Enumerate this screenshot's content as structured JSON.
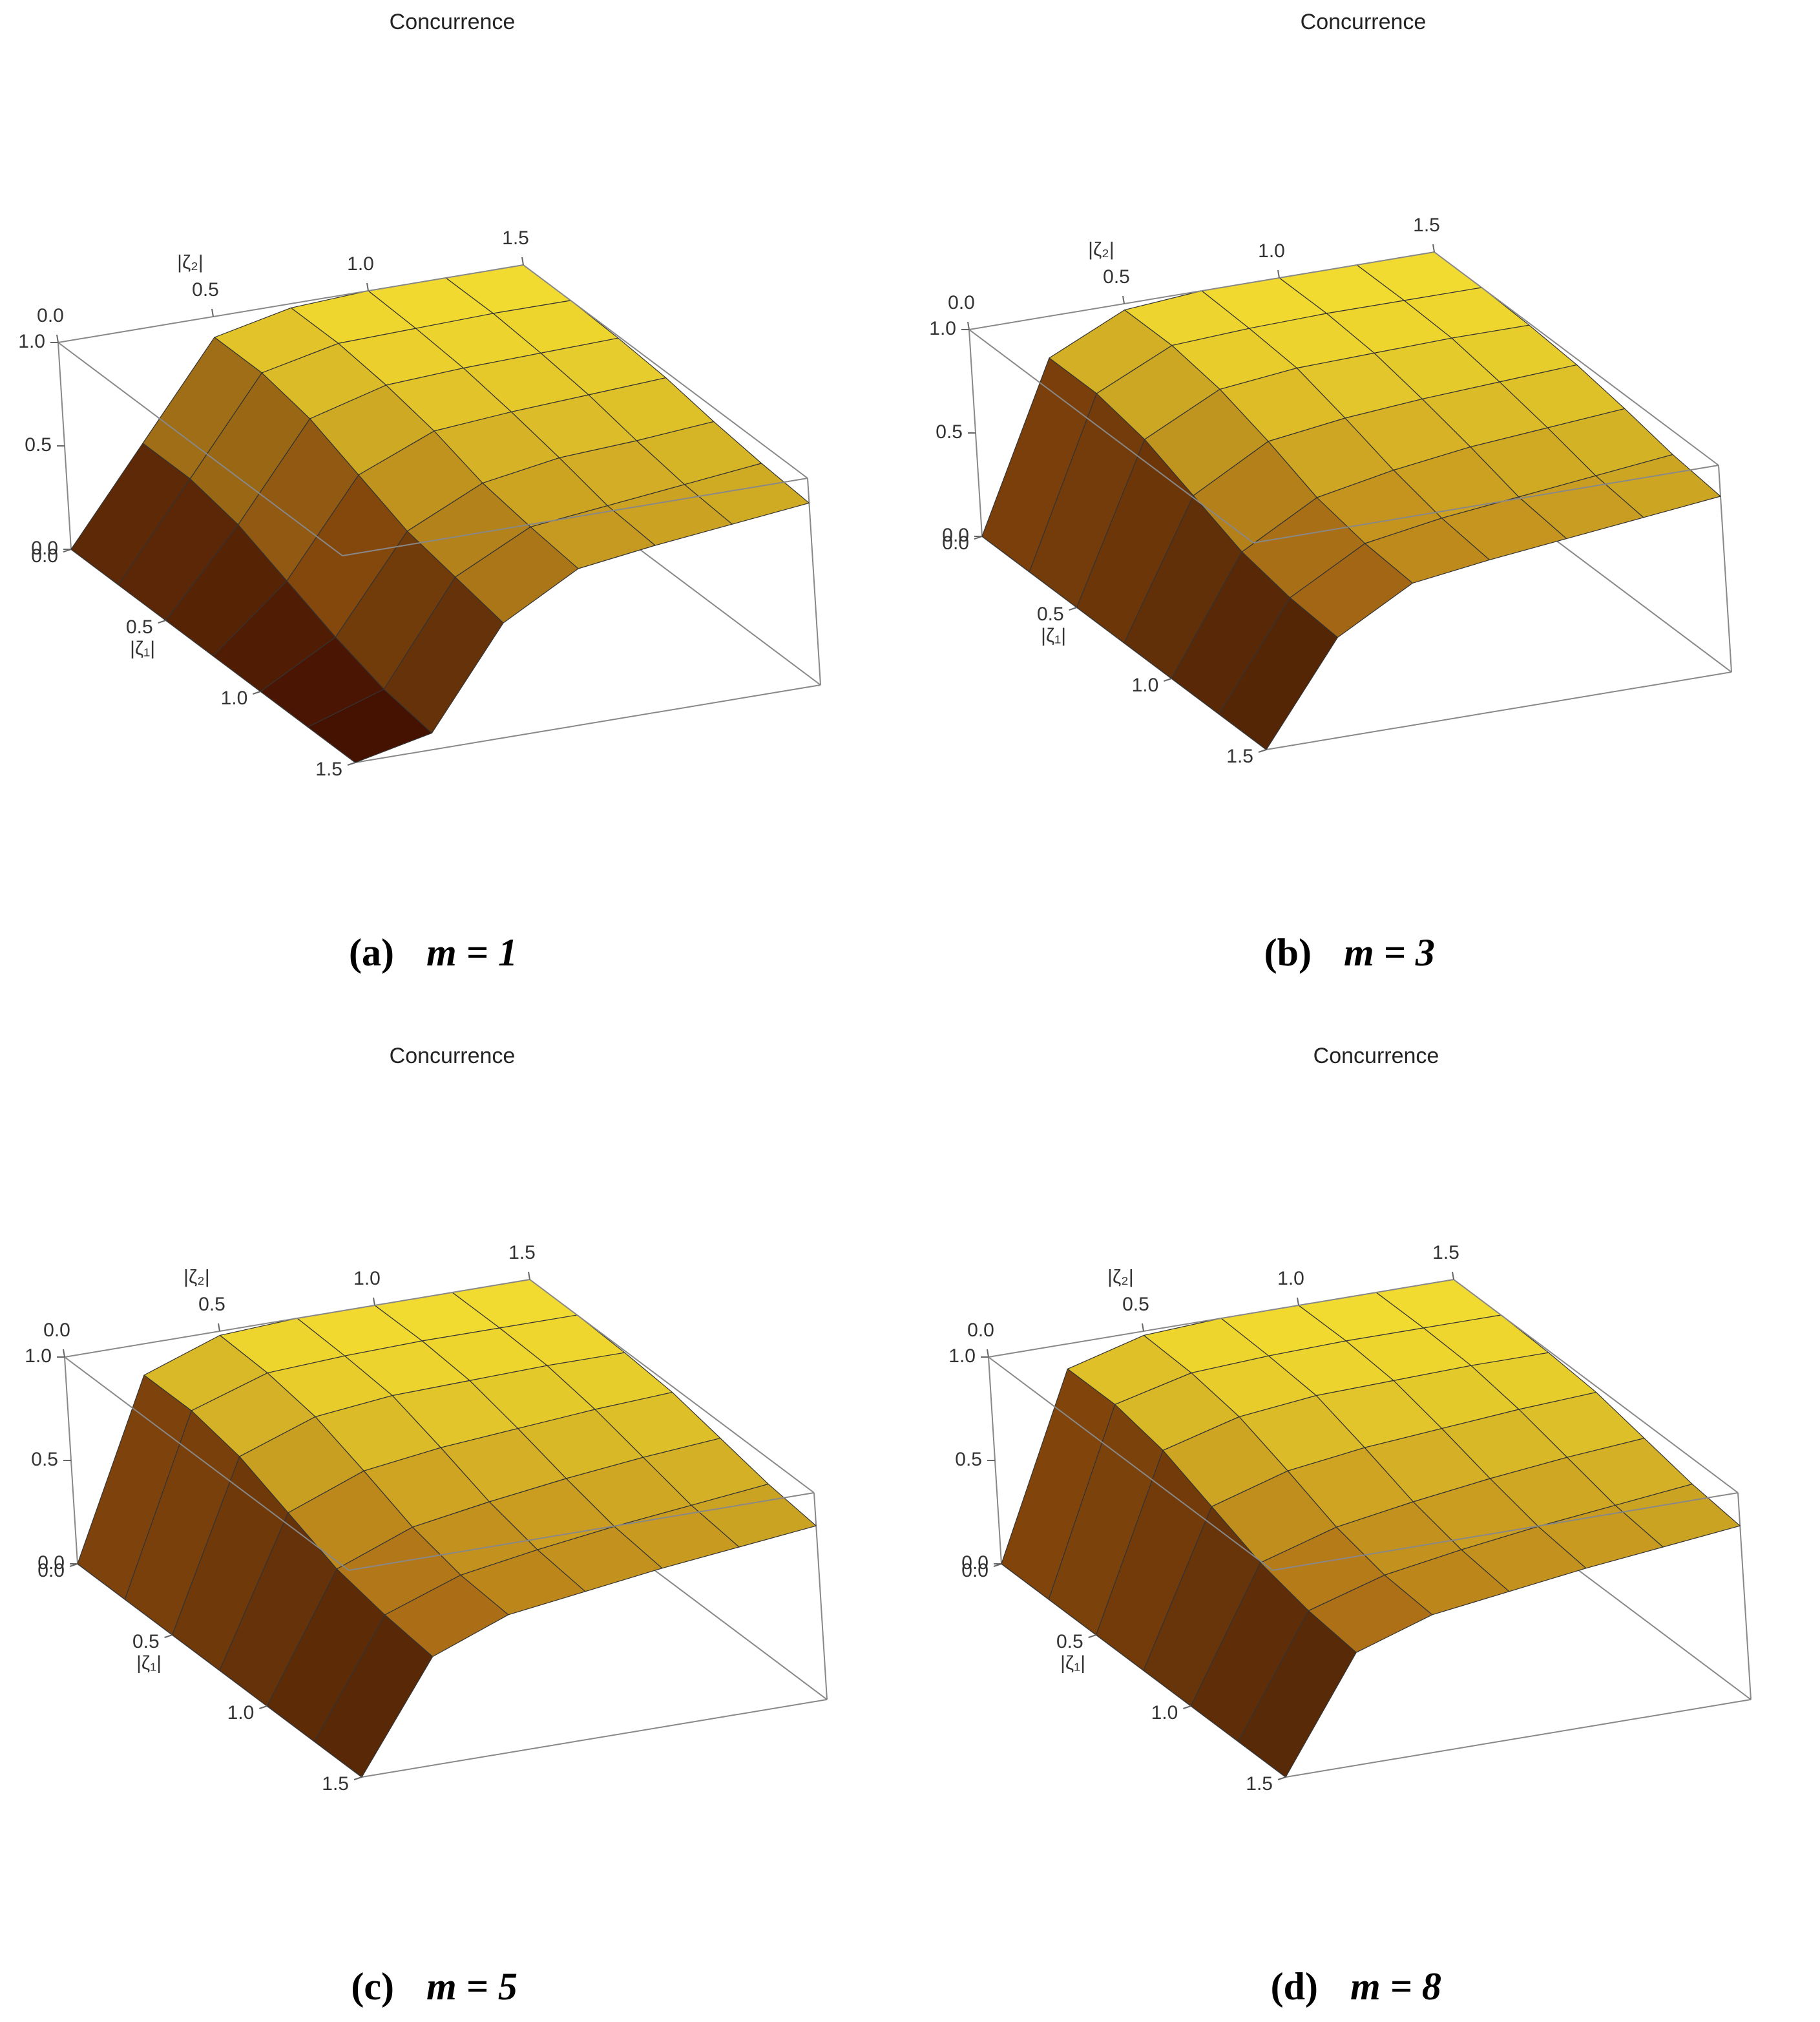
{
  "chart_data": [
    {
      "type": "surface",
      "title": "Concurrence",
      "caption_label": "(a)",
      "caption_equation": "m = 1",
      "xlabel": "|ζ₁|",
      "ylabel": "|ζ₂|",
      "xlim": [
        0,
        1.5
      ],
      "ylim": [
        0,
        1.5
      ],
      "zlim": [
        0,
        1
      ],
      "xticks": [
        {
          "value": 0,
          "label": "0.0"
        },
        0.5,
        {
          "value": 1,
          "label": "1.0"
        },
        1.5
      ],
      "yticks": [
        {
          "value": 0,
          "label": "0.0"
        },
        0.5,
        {
          "value": 1,
          "label": "1.0"
        },
        1.5
      ],
      "zticks": [
        {
          "value": 0,
          "label": "0.0"
        },
        0.5,
        {
          "value": 1,
          "label": "1.0"
        }
      ],
      "x": [
        0,
        0.25,
        0.5,
        0.75,
        1,
        1.25,
        1.5
      ],
      "y": [
        0,
        0.25,
        0.5,
        0.75,
        1,
        1.25,
        1.5
      ],
      "z": [
        [
          0,
          0.45,
          0.9,
          0.98,
          1,
          1,
          1
        ],
        [
          0,
          0.45,
          0.9,
          0.98,
          0.99,
          1,
          1
        ],
        [
          0,
          0.4,
          0.85,
          0.95,
          0.97,
          0.98,
          0.99
        ],
        [
          0,
          0.3,
          0.75,
          0.9,
          0.93,
          0.95,
          0.97
        ],
        [
          0,
          0.2,
          0.65,
          0.82,
          0.88,
          0.9,
          0.93
        ],
        [
          0,
          0.12,
          0.6,
          0.78,
          0.82,
          0.86,
          0.9
        ],
        [
          0,
          0.08,
          0.55,
          0.75,
          0.8,
          0.84,
          0.88
        ]
      ]
    },
    {
      "type": "surface",
      "title": "Concurrence",
      "caption_label": "(b)",
      "caption_equation": "m = 3",
      "xlabel": "|ζ₁|",
      "ylabel": "|ζ₂|",
      "xlim": [
        0,
        1.5
      ],
      "ylim": [
        0,
        1.5
      ],
      "zlim": [
        0,
        1
      ],
      "xticks": [
        {
          "value": 0,
          "label": "0.0"
        },
        0.5,
        {
          "value": 1,
          "label": "1.0"
        },
        1.5
      ],
      "yticks": [
        {
          "value": 0,
          "label": "0.0"
        },
        0.5,
        {
          "value": 1,
          "label": "1.0"
        },
        1.5
      ],
      "zticks": [
        {
          "value": 0,
          "label": "0.0"
        },
        0.5,
        {
          "value": 1,
          "label": "1.0"
        }
      ],
      "x": [
        0,
        0.25,
        0.5,
        0.75,
        1,
        1.25,
        1.5
      ],
      "y": [
        0,
        0.25,
        0.5,
        0.75,
        1,
        1.25,
        1.5
      ],
      "z": [
        [
          0,
          0.8,
          0.97,
          1,
          1,
          1,
          1
        ],
        [
          0,
          0.8,
          0.97,
          0.99,
          1,
          1,
          1
        ],
        [
          0,
          0.75,
          0.93,
          0.97,
          0.98,
          0.99,
          0.99
        ],
        [
          0,
          0.65,
          0.85,
          0.9,
          0.93,
          0.95,
          0.97
        ],
        [
          0,
          0.55,
          0.75,
          0.82,
          0.87,
          0.9,
          0.93
        ],
        [
          0,
          0.5,
          0.7,
          0.76,
          0.8,
          0.84,
          0.88
        ],
        [
          0,
          0.48,
          0.68,
          0.73,
          0.77,
          0.81,
          0.85
        ]
      ]
    },
    {
      "type": "surface",
      "title": "Concurrence",
      "caption_label": "(c)",
      "caption_equation": "m = 5",
      "xlabel": "|ζ₁|",
      "ylabel": "|ζ₂|",
      "xlim": [
        0,
        1.5
      ],
      "ylim": [
        0,
        1.5
      ],
      "zlim": [
        0,
        1
      ],
      "xticks": [
        {
          "value": 0,
          "label": "0.0"
        },
        0.5,
        {
          "value": 1,
          "label": "1.0"
        },
        1.5
      ],
      "yticks": [
        {
          "value": 0,
          "label": "0.0"
        },
        0.5,
        {
          "value": 1,
          "label": "1.0"
        },
        1.5
      ],
      "zticks": [
        {
          "value": 0,
          "label": "0.0"
        },
        0.5,
        {
          "value": 1,
          "label": "1.0"
        }
      ],
      "x": [
        0,
        0.25,
        0.5,
        0.75,
        1,
        1.25,
        1.5
      ],
      "y": [
        0,
        0.25,
        0.5,
        0.75,
        1,
        1.25,
        1.5
      ],
      "z": [
        [
          0,
          0.85,
          0.98,
          1,
          1,
          1,
          1
        ],
        [
          0,
          0.85,
          0.97,
          0.99,
          1,
          1,
          1
        ],
        [
          0,
          0.8,
          0.93,
          0.97,
          0.98,
          0.99,
          0.99
        ],
        [
          0,
          0.7,
          0.84,
          0.89,
          0.92,
          0.95,
          0.97
        ],
        [
          0,
          0.6,
          0.74,
          0.8,
          0.85,
          0.89,
          0.92
        ],
        [
          0,
          0.55,
          0.68,
          0.74,
          0.79,
          0.83,
          0.87
        ],
        [
          0,
          0.52,
          0.66,
          0.71,
          0.76,
          0.8,
          0.84
        ]
      ]
    },
    {
      "type": "surface",
      "title": "Concurrence",
      "caption_label": "(d)",
      "caption_equation": "m = 8",
      "xlabel": "|ζ₁|",
      "ylabel": "|ζ₂|",
      "xlim": [
        0,
        1.5
      ],
      "ylim": [
        0,
        1.5
      ],
      "zlim": [
        0,
        1
      ],
      "xticks": [
        {
          "value": 0,
          "label": "0.0"
        },
        0.5,
        {
          "value": 1,
          "label": "1.0"
        },
        1.5
      ],
      "yticks": [
        {
          "value": 0,
          "label": "0.0"
        },
        0.5,
        {
          "value": 1,
          "label": "1.0"
        },
        1.5
      ],
      "zticks": [
        {
          "value": 0,
          "label": "0.0"
        },
        0.5,
        {
          "value": 1,
          "label": "1.0"
        }
      ],
      "x": [
        0,
        0.25,
        0.5,
        0.75,
        1,
        1.25,
        1.5
      ],
      "y": [
        0,
        0.25,
        0.5,
        0.75,
        1,
        1.25,
        1.5
      ],
      "z": [
        [
          0,
          0.88,
          0.98,
          1,
          1,
          1,
          1
        ],
        [
          0,
          0.88,
          0.97,
          0.99,
          1,
          1,
          1
        ],
        [
          0,
          0.83,
          0.93,
          0.97,
          0.98,
          0.99,
          0.99
        ],
        [
          0,
          0.73,
          0.84,
          0.89,
          0.92,
          0.95,
          0.97
        ],
        [
          0,
          0.63,
          0.74,
          0.8,
          0.85,
          0.89,
          0.92
        ],
        [
          0,
          0.57,
          0.68,
          0.74,
          0.79,
          0.83,
          0.87
        ],
        [
          0,
          0.54,
          0.66,
          0.71,
          0.76,
          0.8,
          0.84
        ]
      ]
    }
  ]
}
